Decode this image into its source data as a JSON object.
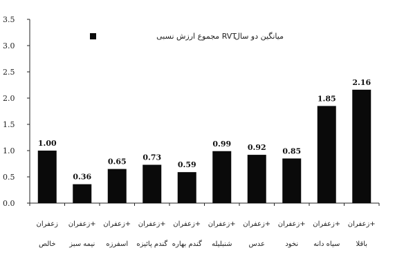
{
  "chart_data": {
    "type": "bar",
    "categories": [
      [
        "زعفران",
        "خالص"
      ],
      [
        "زعفران+",
        "نیمه سبز"
      ],
      [
        "زعفران+",
        "اسفرزه"
      ],
      [
        "زعفران+",
        "گندم پائیزه"
      ],
      [
        "زعفران+",
        "گندم بهاره"
      ],
      [
        "زعفران+",
        "شنبلیله"
      ],
      [
        "زعفران+",
        "عدس"
      ],
      [
        "زعفران+",
        "نخود"
      ],
      [
        "زعفران+",
        "سیاه دانه"
      ],
      [
        "زعفران+",
        "باقلا"
      ]
    ],
    "values": [
      1.0,
      0.36,
      0.65,
      0.73,
      0.59,
      0.99,
      0.92,
      0.85,
      1.85,
      2.16
    ],
    "data_labels": [
      "1.00",
      "0.36",
      "0.65",
      "0.73",
      "0.59",
      "0.99",
      "0.92",
      "0.85",
      "1.85",
      "2.16"
    ],
    "y_ticks": [
      "0.0",
      "0.5",
      "1.0",
      "1.5",
      "2.0",
      "2.5",
      "3.0",
      "3.5"
    ],
    "ylim": [
      0,
      3.5
    ],
    "grid": false,
    "legend_placement": "top-center",
    "legend_label": "مجموع ارزش نسبی RVT",
    "legend_title": "میانگین دو سال",
    "bar_color": "#0a0a0a"
  }
}
